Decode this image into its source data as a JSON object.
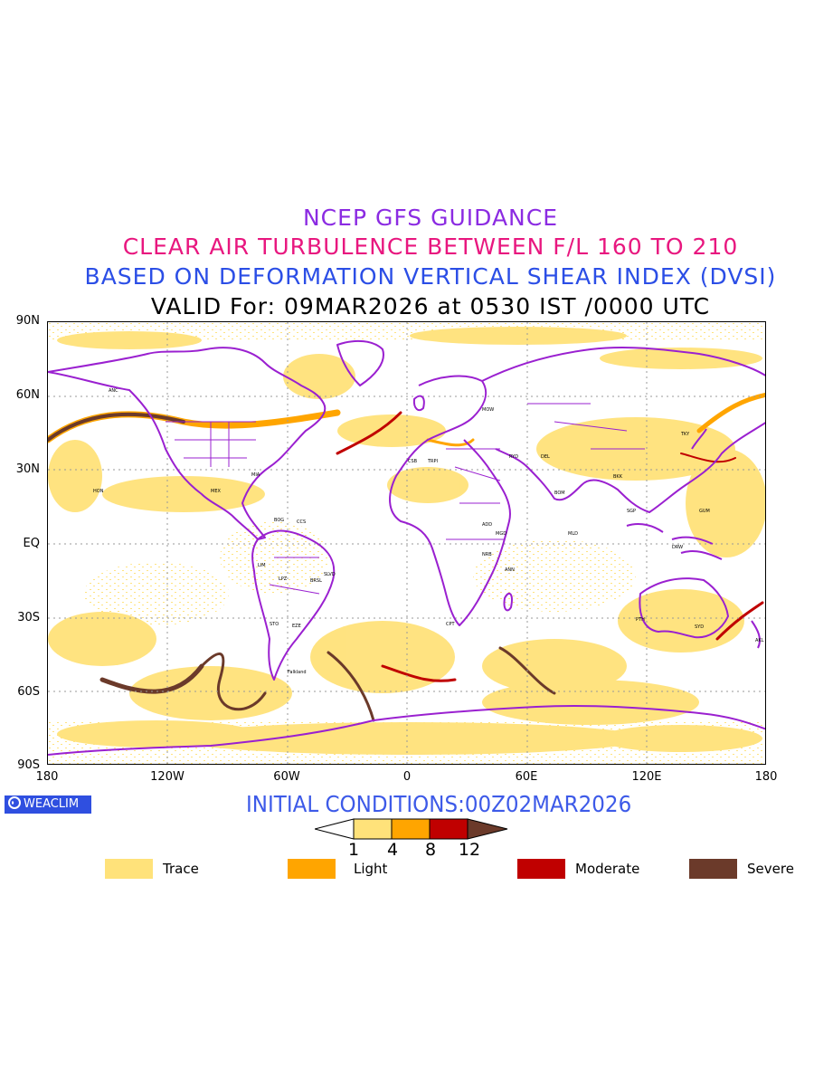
{
  "titles": {
    "line1": "NCEP GFS GUIDANCE",
    "line2": "CLEAR AIR TURBULENCE BETWEEN F/L 160 TO 210",
    "line3": "BASED ON DEFORMATION VERTICAL SHEAR INDEX (DVSI)",
    "line4": "VALID For: 09MAR2026 at 0530 IST /0000 UTC"
  },
  "colors": {
    "line1": "#8b2be2",
    "line2": "#e8177f",
    "line3": "#2b4ee6",
    "line4": "#000000",
    "coast": "#9a20d0",
    "trace": "#ffe27a",
    "light": "#ffa500",
    "moderate": "#c00000",
    "severe": "#6b3a2a"
  },
  "axes": {
    "lat_labels": [
      "90N",
      "60N",
      "30N",
      "EQ",
      "30S",
      "60S",
      "90S"
    ],
    "lon_labels": [
      "180",
      "120W",
      "60W",
      "0",
      "60E",
      "120E",
      "180"
    ]
  },
  "brand": {
    "label": "WEACLIM"
  },
  "initial_conditions": "INITIAL CONDITIONS:00Z02MAR2026",
  "colorbar": {
    "ticks": [
      "1",
      "4",
      "8",
      "12"
    ]
  },
  "legend": [
    {
      "label": "Trace",
      "color": "#ffe27a"
    },
    {
      "label": "Light",
      "color": "#ffa500"
    },
    {
      "label": "Moderate",
      "color": "#c00000"
    },
    {
      "label": "Severe",
      "color": "#6b3a2a"
    }
  ],
  "map_labels": {
    "falkland": "Falkland"
  }
}
